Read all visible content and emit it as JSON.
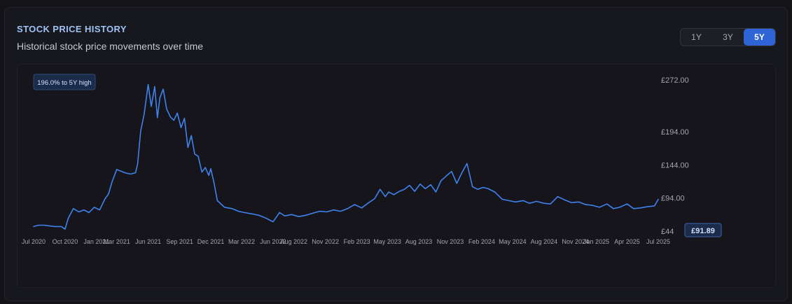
{
  "header": {
    "title": "STOCK PRICE HISTORY",
    "subtitle": "Historical stock price movements over time"
  },
  "range_selector": {
    "options": [
      "1Y",
      "3Y",
      "5Y"
    ],
    "selected": "5Y"
  },
  "colors": {
    "line": "#3f82ee",
    "accent": "#2f64d6",
    "badge_bg": "#1b2c4a",
    "badge_text": "#cfe1ff",
    "axis_text": "#a4a5ad"
  },
  "chart_data": {
    "type": "line",
    "y_ticks": [
      "£272.00",
      "£194.00",
      "£144.00",
      "£94.00",
      "£44"
    ],
    "y_tick_values": [
      272,
      194,
      144,
      94,
      44
    ],
    "ylim": [
      44,
      272
    ],
    "x_ticks": [
      "Jul 2020",
      "Oct 2020",
      "Jan 2021",
      "Mar 2021",
      "Jun 2021",
      "Sep 2021",
      "Dec 2021",
      "Mar 2022",
      "Jun 2022",
      "Aug 2022",
      "Nov 2022",
      "Feb 2023",
      "May 2023",
      "Aug 2023",
      "Nov 2023",
      "Feb 2024",
      "May 2024",
      "Aug 2024",
      "Nov 2024",
      "Jan 2025",
      "Apr 2025",
      "Jul 2025"
    ],
    "x_tick_dates": [
      "2020-07-01",
      "2020-10-01",
      "2021-01-01",
      "2021-03-01",
      "2021-06-01",
      "2021-09-01",
      "2021-12-01",
      "2022-03-01",
      "2022-06-01",
      "2022-08-01",
      "2022-11-01",
      "2023-02-01",
      "2023-05-01",
      "2023-08-01",
      "2023-11-01",
      "2024-02-01",
      "2024-05-01",
      "2024-08-01",
      "2024-11-01",
      "2025-01-01",
      "2025-04-01",
      "2025-07-01"
    ],
    "series": [
      {
        "x": [
          "2020-07-01",
          "2020-07-15",
          "2020-08-01",
          "2020-08-15",
          "2020-09-01",
          "2020-09-20",
          "2020-10-01",
          "2020-10-10",
          "2020-10-25",
          "2020-11-10",
          "2020-11-25",
          "2020-12-10",
          "2020-12-25",
          "2021-01-10",
          "2021-01-25",
          "2021-02-05",
          "2021-02-15",
          "2021-03-01",
          "2021-03-10",
          "2021-03-25",
          "2021-04-10",
          "2021-04-25",
          "2021-05-01",
          "2021-05-10",
          "2021-05-20",
          "2021-06-01",
          "2021-06-10",
          "2021-06-20",
          "2021-06-28",
          "2021-07-05",
          "2021-07-15",
          "2021-07-25",
          "2021-08-05",
          "2021-08-15",
          "2021-08-25",
          "2021-09-05",
          "2021-09-15",
          "2021-09-25",
          "2021-10-05",
          "2021-10-15",
          "2021-10-25",
          "2021-11-05",
          "2021-11-15",
          "2021-11-25",
          "2021-12-01",
          "2021-12-10",
          "2021-12-20",
          "2022-01-10",
          "2022-02-01",
          "2022-02-20",
          "2022-03-10",
          "2022-04-01",
          "2022-04-20",
          "2022-05-10",
          "2022-06-01",
          "2022-06-20",
          "2022-07-05",
          "2022-07-25",
          "2022-08-15",
          "2022-09-05",
          "2022-09-25",
          "2022-10-15",
          "2022-11-05",
          "2022-11-25",
          "2022-12-15",
          "2023-01-05",
          "2023-01-25",
          "2023-02-15",
          "2023-03-05",
          "2023-03-25",
          "2023-04-10",
          "2023-04-25",
          "2023-05-05",
          "2023-05-20",
          "2023-06-05",
          "2023-06-20",
          "2023-07-05",
          "2023-07-20",
          "2023-08-05",
          "2023-08-20",
          "2023-09-05",
          "2023-09-20",
          "2023-10-05",
          "2023-10-20",
          "2023-11-05",
          "2023-11-20",
          "2023-12-05",
          "2023-12-20",
          "2024-01-05",
          "2024-01-20",
          "2024-02-05",
          "2024-02-20",
          "2024-03-10",
          "2024-04-01",
          "2024-04-20",
          "2024-05-10",
          "2024-06-01",
          "2024-06-20",
          "2024-07-10",
          "2024-08-01",
          "2024-08-20",
          "2024-09-10",
          "2024-10-01",
          "2024-10-20",
          "2024-11-10",
          "2024-12-01",
          "2024-12-20",
          "2025-01-10",
          "2025-02-01",
          "2025-02-20",
          "2025-03-10",
          "2025-04-01",
          "2025-04-20",
          "2025-05-10",
          "2025-06-01",
          "2025-06-20",
          "2025-07-01"
        ],
        "y": [
          51,
          53,
          53,
          52,
          51,
          51,
          47,
          63,
          78,
          73,
          76,
          72,
          80,
          76,
          92,
          100,
          118,
          137,
          135,
          132,
          130,
          132,
          145,
          195,
          220,
          265,
          232,
          262,
          215,
          245,
          258,
          228,
          216,
          211,
          222,
          200,
          214,
          170,
          188,
          160,
          157,
          133,
          140,
          128,
          138,
          118,
          90,
          80,
          78,
          74,
          72,
          70,
          68,
          64,
          58,
          72,
          67,
          69,
          66,
          68,
          71,
          74,
          73,
          76,
          74,
          78,
          84,
          79,
          86,
          93,
          107,
          96,
          103,
          99,
          104,
          107,
          113,
          104,
          115,
          108,
          114,
          103,
          120,
          127,
          134,
          116,
          132,
          146,
          111,
          107,
          110,
          108,
          103,
          92,
          90,
          88,
          90,
          86,
          89,
          86,
          85,
          96,
          91,
          87,
          88,
          84,
          83,
          80,
          85,
          78,
          80,
          85,
          78,
          79,
          81,
          82,
          91.89
        ]
      }
    ],
    "annotation_high": "196.0% to 5Y high",
    "last_price_label": "£91.89",
    "grid": false,
    "legend": "none"
  }
}
